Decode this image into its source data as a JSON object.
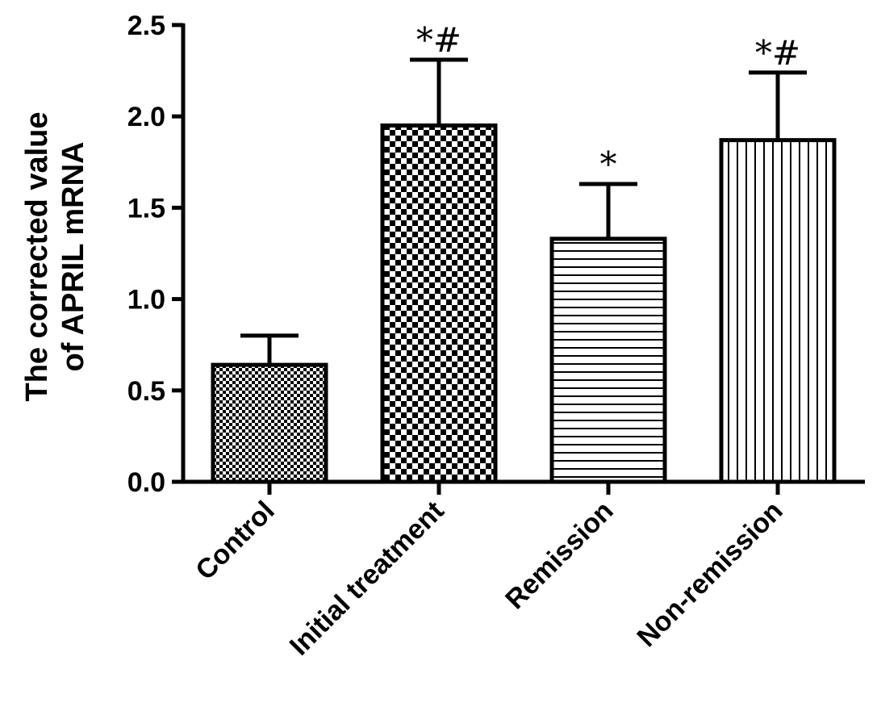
{
  "chart_data": {
    "type": "bar",
    "categories": [
      "Control",
      "Initial treatment",
      "Remission",
      "Non-remission"
    ],
    "values": [
      0.64,
      1.95,
      1.33,
      1.87
    ],
    "errors": [
      0.16,
      0.36,
      0.3,
      0.37
    ],
    "annotations": [
      "",
      "*#",
      "*",
      "*#"
    ],
    "patterns": [
      "fine-checker",
      "coarse-checker",
      "horizontal-lines",
      "vertical-lines"
    ],
    "ylabel_lines": [
      "The corrected value",
      "of APRIL mRNA"
    ],
    "xlabel": "",
    "ylim": [
      0,
      2.5
    ],
    "yticks": [
      0.0,
      0.5,
      1.0,
      1.5,
      2.0,
      2.5
    ],
    "ytick_labels": [
      "0.0",
      "0.5",
      "1.0",
      "1.5",
      "2.0",
      "2.5"
    ],
    "grid": false,
    "colors": {
      "bar_stroke": "#000000",
      "bar_fill": "#ffffff",
      "pattern": "#000000"
    }
  }
}
